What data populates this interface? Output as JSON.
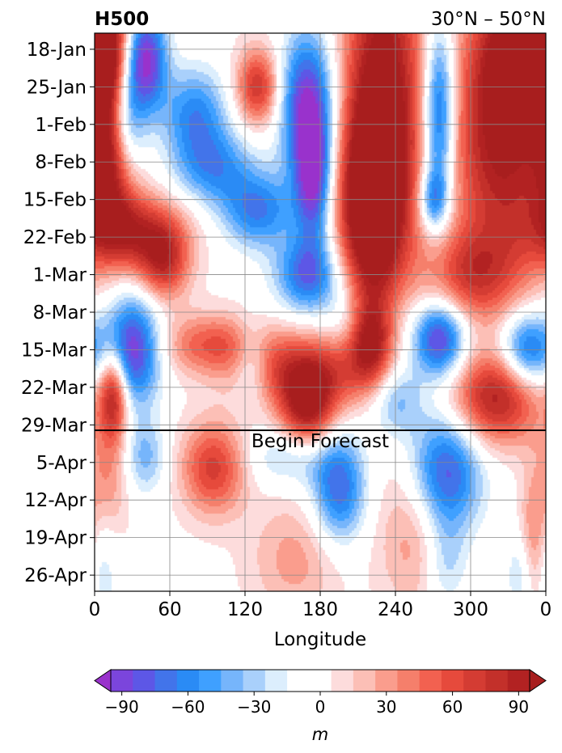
{
  "chart_data": {
    "type": "heatmap",
    "title_left": "H500",
    "title_right": "30°N – 50°N",
    "xlabel": "Longitude",
    "ylabel": "",
    "x_ticks": [
      "0",
      "60",
      "120",
      "180",
      "240",
      "300",
      "0"
    ],
    "x_tick_values": [
      0,
      60,
      120,
      180,
      240,
      300,
      360
    ],
    "xlim": [
      0,
      360
    ],
    "y_ticks": [
      "18-Jan",
      "25-Jan",
      "1-Feb",
      "8-Feb",
      "15-Feb",
      "22-Feb",
      "1-Mar",
      "8-Mar",
      "15-Mar",
      "22-Mar",
      "29-Mar",
      "5-Apr",
      "12-Apr",
      "19-Apr",
      "26-Apr"
    ],
    "y_tick_days": [
      0,
      7,
      14,
      21,
      28,
      35,
      42,
      49,
      56,
      63,
      70,
      77,
      84,
      91,
      98
    ],
    "ylim_days": [
      -3,
      101
    ],
    "forecast_start_day": 71,
    "annotation": "Begin Forecast",
    "grid": true,
    "colorbar": {
      "label": "m",
      "ticks": [
        "−90",
        "−60",
        "−30",
        "0",
        "30",
        "60",
        "90"
      ],
      "tick_values": [
        -90,
        -60,
        -30,
        0,
        30,
        60,
        90
      ],
      "levels": [
        -105,
        -95,
        -85,
        -75,
        -65,
        -55,
        -45,
        -35,
        -25,
        -15,
        -5,
        5,
        15,
        25,
        35,
        45,
        55,
        65,
        75,
        85,
        95,
        105
      ],
      "colors": [
        "#9932cc",
        "#7b45dc",
        "#5d57e6",
        "#4274ea",
        "#2a8bf5",
        "#3fa0ff",
        "#76b5fb",
        "#a9d0fb",
        "#dceefd",
        "#ffffff",
        "#ffffff",
        "#fddcdc",
        "#fcbfb6",
        "#fa9d8d",
        "#f57f6b",
        "#f26150",
        "#e64a3c",
        "#d43c33",
        "#c3302a",
        "#b22222",
        "#a81e1e"
      ],
      "extend": "both"
    },
    "anomaly_features": [
      {
        "lon": 8,
        "day": -1,
        "value": 85,
        "sx": 14,
        "sy": 8
      },
      {
        "lon": 12,
        "day": 20,
        "value": 95,
        "sx": 14,
        "sy": 10
      },
      {
        "lon": 30,
        "day": 34,
        "value": 80,
        "sx": 28,
        "sy": 5
      },
      {
        "lon": 40,
        "day": 2,
        "value": -105,
        "sx": 12,
        "sy": 7
      },
      {
        "lon": 25,
        "day": 14,
        "value": -70,
        "sx": 10,
        "sy": 7
      },
      {
        "lon": 80,
        "day": 12,
        "value": -60,
        "sx": 18,
        "sy": 6
      },
      {
        "lon": 95,
        "day": 22,
        "value": -55,
        "sx": 22,
        "sy": 5
      },
      {
        "lon": 130,
        "day": 30,
        "value": -65,
        "sx": 20,
        "sy": 5
      },
      {
        "lon": 170,
        "day": 42,
        "value": -75,
        "sx": 18,
        "sy": 5
      },
      {
        "lon": 215,
        "day": 50,
        "value": -50,
        "sx": 18,
        "sy": 5
      },
      {
        "lon": 130,
        "day": 7,
        "value": 75,
        "sx": 12,
        "sy": 5
      },
      {
        "lon": 55,
        "day": 40,
        "value": 70,
        "sx": 14,
        "sy": 5
      },
      {
        "lon": 170,
        "day": 11,
        "value": -100,
        "sx": 15,
        "sy": 10
      },
      {
        "lon": 175,
        "day": 25,
        "value": -80,
        "sx": 10,
        "sy": 8
      },
      {
        "lon": 230,
        "day": 10,
        "value": 115,
        "sx": 22,
        "sy": 22
      },
      {
        "lon": 220,
        "day": 30,
        "value": 100,
        "sx": 18,
        "sy": 12
      },
      {
        "lon": 275,
        "day": 12,
        "value": -95,
        "sx": 9,
        "sy": 12
      },
      {
        "lon": 270,
        "day": 28,
        "value": -60,
        "sx": 8,
        "sy": 4
      },
      {
        "lon": 325,
        "day": 15,
        "value": 105,
        "sx": 28,
        "sy": 18
      },
      {
        "lon": 345,
        "day": 0,
        "value": 95,
        "sx": 20,
        "sy": 8
      },
      {
        "lon": 300,
        "day": 42,
        "value": 60,
        "sx": 25,
        "sy": 6
      },
      {
        "lon": 30,
        "day": 56,
        "value": -100,
        "sx": 16,
        "sy": 7
      },
      {
        "lon": 15,
        "day": 64,
        "value": 95,
        "sx": 8,
        "sy": 6
      },
      {
        "lon": 95,
        "day": 55,
        "value": 55,
        "sx": 30,
        "sy": 4
      },
      {
        "lon": 170,
        "day": 60,
        "value": 75,
        "sx": 35,
        "sy": 5
      },
      {
        "lon": 170,
        "day": 67,
        "value": 90,
        "sx": 15,
        "sy": 5
      },
      {
        "lon": 220,
        "day": 53,
        "value": 110,
        "sx": 12,
        "sy": 6
      },
      {
        "lon": 275,
        "day": 54,
        "value": -95,
        "sx": 15,
        "sy": 5
      },
      {
        "lon": 345,
        "day": 56,
        "value": -80,
        "sx": 15,
        "sy": 5
      },
      {
        "lon": 320,
        "day": 65,
        "value": 90,
        "sx": 25,
        "sy": 6
      },
      {
        "lon": 125,
        "day": 58,
        "value": -40,
        "sx": 10,
        "sy": 5
      },
      {
        "lon": 240,
        "day": 65,
        "value": -45,
        "sx": 15,
        "sy": 5
      },
      {
        "lon": 95,
        "day": 78,
        "value": 70,
        "sx": 18,
        "sy": 6
      },
      {
        "lon": 10,
        "day": 80,
        "value": 35,
        "sx": 12,
        "sy": 8
      },
      {
        "lon": 40,
        "day": 76,
        "value": -40,
        "sx": 12,
        "sy": 5
      },
      {
        "lon": 155,
        "day": 76,
        "value": -30,
        "sx": 25,
        "sy": 4
      },
      {
        "lon": 195,
        "day": 82,
        "value": -75,
        "sx": 15,
        "sy": 7
      },
      {
        "lon": 280,
        "day": 79,
        "value": -85,
        "sx": 20,
        "sy": 8
      },
      {
        "lon": 255,
        "day": 90,
        "value": 35,
        "sx": 20,
        "sy": 10
      },
      {
        "lon": 160,
        "day": 95,
        "value": 30,
        "sx": 25,
        "sy": 8
      },
      {
        "lon": 350,
        "day": 92,
        "value": 40,
        "sx": 8,
        "sy": 9
      },
      {
        "lon": 340,
        "day": 98,
        "value": -30,
        "sx": 8,
        "sy": 6
      },
      {
        "lon": 5,
        "day": 97,
        "value": -25,
        "sx": 10,
        "sy": 8
      },
      {
        "lon": 280,
        "day": 96,
        "value": -30,
        "sx": 12,
        "sy": 6
      }
    ]
  }
}
